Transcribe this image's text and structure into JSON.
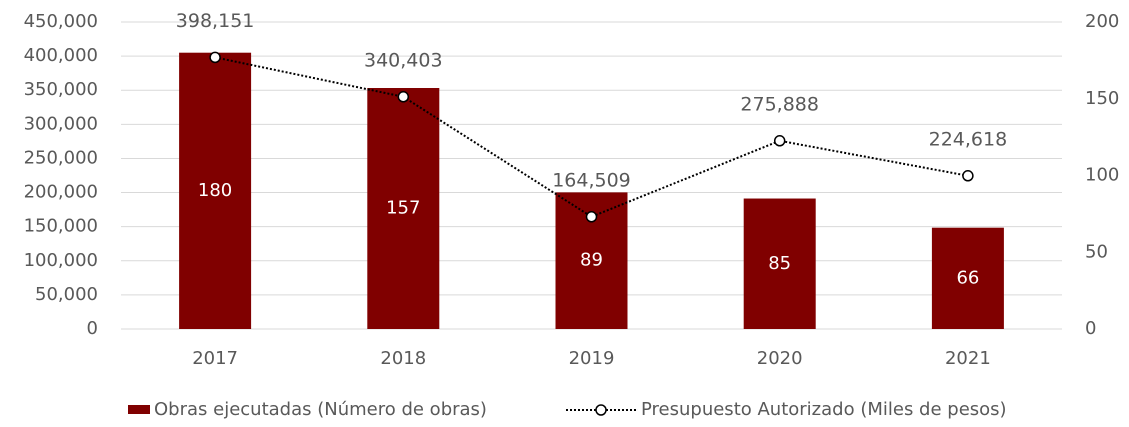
{
  "chart_data": {
    "type": "bar",
    "categories": [
      "2017",
      "2018",
      "2019",
      "2020",
      "2021"
    ],
    "series": [
      {
        "name": "Obras ejecutadas (Número de obras)",
        "type": "bar",
        "axis": "y2",
        "color": "#800000",
        "values": [
          180,
          157,
          89,
          85,
          66
        ]
      },
      {
        "name": "Presupuesto Autorizado (Miles de pesos)",
        "type": "line",
        "axis": "y",
        "color": "#000000",
        "values": [
          398151,
          340403,
          164509,
          275888,
          224618
        ],
        "value_labels": [
          "398,151",
          "340,403",
          "164,509",
          "275,888",
          "224,618"
        ]
      }
    ],
    "ylim": [
      0,
      450000
    ],
    "yticks": [
      {
        "value": 0,
        "label": "0"
      },
      {
        "value": 50000,
        "label": "50,000"
      },
      {
        "value": 100000,
        "label": "100,000"
      },
      {
        "value": 150000,
        "label": "150,000"
      },
      {
        "value": 200000,
        "label": "200,000"
      },
      {
        "value": 250000,
        "label": "250,000"
      },
      {
        "value": 300000,
        "label": "300,000"
      },
      {
        "value": 350000,
        "label": "350,000"
      },
      {
        "value": 400000,
        "label": "400,000"
      },
      {
        "value": 450000,
        "label": "450,000"
      }
    ],
    "y2lim": [
      0,
      200
    ],
    "y2ticks": [
      0,
      50,
      100,
      150,
      200
    ],
    "grid": true,
    "legend": "bottom"
  }
}
